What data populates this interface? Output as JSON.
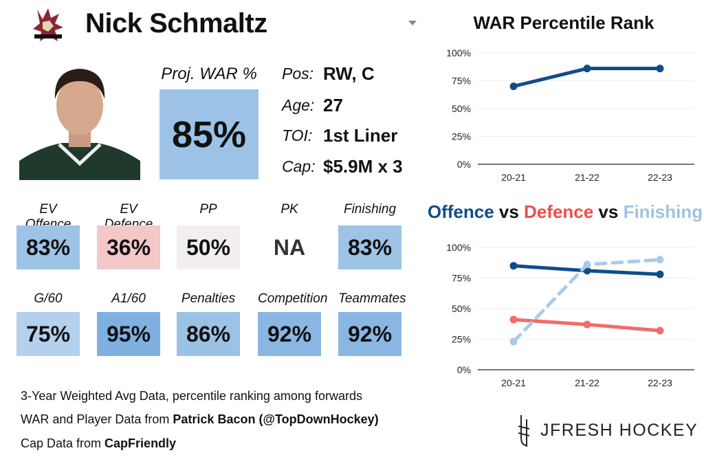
{
  "player": {
    "name": "Nick Schmaltz",
    "logo": "arizona-coyotes-logo",
    "photo": "player-headshot"
  },
  "proj_war": {
    "label": "Proj. WAR %",
    "value": "85%",
    "color": "#9cc3e6"
  },
  "info": [
    {
      "label": "Pos:",
      "value": "RW, C"
    },
    {
      "label": "Age:",
      "value": "27"
    },
    {
      "label": "TOI:",
      "value": "1st Liner"
    },
    {
      "label": "Cap:",
      "value": "$5.9M x 3"
    }
  ],
  "tiles": [
    {
      "label": "EV Offence",
      "value": "83%",
      "color": "#9dc3e6"
    },
    {
      "label": "EV Defence",
      "value": "36%",
      "color": "#f4c7c9"
    },
    {
      "label": "PP",
      "value": "50%",
      "color": "#f2eeee"
    },
    {
      "label": "PK",
      "value": "NA",
      "color": "#ffffff"
    },
    {
      "label": "Finishing",
      "value": "83%",
      "color": "#9dc3e6"
    },
    {
      "label": "G/60",
      "value": "75%",
      "color": "#b3d0ec"
    },
    {
      "label": "A1/60",
      "value": "95%",
      "color": "#7eb0e0"
    },
    {
      "label": "Penalties",
      "value": "86%",
      "color": "#9bc1e5"
    },
    {
      "label": "Competition",
      "value": "92%",
      "color": "#89b7e2"
    },
    {
      "label": "Teammates",
      "value": "92%",
      "color": "#89b7e2"
    }
  ],
  "footer": {
    "line1": "3-Year Weighted Avg Data, percentile ranking among forwards",
    "line2_prefix": "WAR and Player Data from ",
    "line2_bold": "Patrick Bacon (@TopDownHockey)",
    "line3_prefix": "Cap Data from ",
    "line3_bold": "CapFriendly",
    "brand": "JFRESH HOCKEY"
  },
  "chart_data": [
    {
      "type": "line",
      "title": "WAR Percentile Rank",
      "categories": [
        "20-21",
        "21-22",
        "22-23"
      ],
      "yticks": [
        "0%",
        "25%",
        "50%",
        "75%",
        "100%"
      ],
      "ylim": [
        0,
        100
      ],
      "grid": true,
      "series": [
        {
          "values": [
            70,
            86,
            86
          ],
          "color": "#0f4c8c",
          "dash": false
        }
      ]
    },
    {
      "type": "line",
      "title_parts": [
        {
          "text": "Offence",
          "color": "#0f4c8c"
        },
        {
          "text": " vs ",
          "color": "#111111"
        },
        {
          "text": "Defence",
          "color": "#f24b4b"
        },
        {
          "text": " vs ",
          "color": "#111111"
        },
        {
          "text": "Finishing",
          "color": "#9dc3e6"
        }
      ],
      "categories": [
        "20-21",
        "21-22",
        "22-23"
      ],
      "yticks": [
        "0%",
        "25%",
        "50%",
        "75%",
        "100%"
      ],
      "ylim": [
        0,
        100
      ],
      "grid": true,
      "series": [
        {
          "name": "Offence",
          "values": [
            85,
            81,
            78
          ],
          "color": "#0f4c8c",
          "dash": false
        },
        {
          "name": "Defence",
          "values": [
            41,
            37,
            32
          ],
          "color": "#f46a6a",
          "dash": false
        },
        {
          "name": "Finishing",
          "values": [
            23,
            86,
            90
          ],
          "color": "#a9cbea",
          "dash": true
        }
      ]
    }
  ]
}
